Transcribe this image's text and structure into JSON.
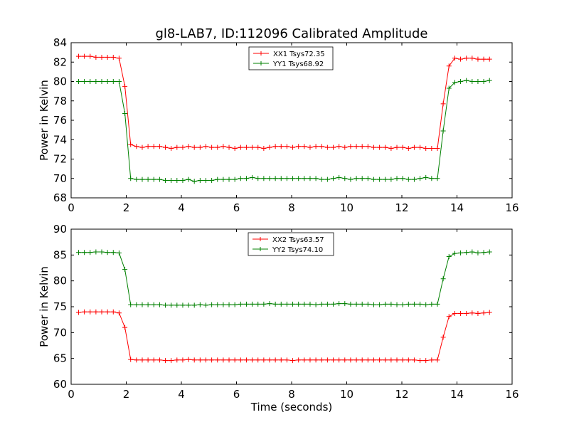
{
  "figure": {
    "title": "gl8-LAB7, ID:112096 Calibrated Amplitude"
  },
  "chart_data": [
    {
      "type": "line",
      "title": "gl8-LAB7, ID:112096 Calibrated Amplitude",
      "xlabel": "",
      "ylabel": "Power in Kelvin",
      "xlim": [
        0,
        16
      ],
      "ylim": [
        68,
        84
      ],
      "xticks": [
        0,
        2,
        4,
        6,
        8,
        10,
        12,
        14,
        16
      ],
      "yticks": [
        68,
        70,
        72,
        74,
        76,
        78,
        80,
        82,
        84
      ],
      "grid": false,
      "legend_position": "top-center",
      "x": [
        0.27,
        0.48,
        0.69,
        0.9,
        1.11,
        1.32,
        1.53,
        1.74,
        1.95,
        2.16,
        2.37,
        2.58,
        2.79,
        3.0,
        3.21,
        3.42,
        3.63,
        3.84,
        4.05,
        4.26,
        4.47,
        4.68,
        4.89,
        5.1,
        5.31,
        5.52,
        5.73,
        5.94,
        6.15,
        6.36,
        6.57,
        6.78,
        6.99,
        7.2,
        7.41,
        7.62,
        7.83,
        8.04,
        8.25,
        8.46,
        8.67,
        8.88,
        9.09,
        9.3,
        9.51,
        9.72,
        9.93,
        10.14,
        10.35,
        10.56,
        10.77,
        10.98,
        11.19,
        11.4,
        11.61,
        11.82,
        12.03,
        12.24,
        12.45,
        12.66,
        12.87,
        13.08,
        13.29,
        13.5,
        13.71,
        13.92,
        14.13,
        14.34,
        14.55,
        14.76,
        14.97,
        15.18
      ],
      "series": [
        {
          "name": "XX1 Tsys72.35",
          "color": "#ff0000",
          "values": [
            82.6,
            82.6,
            82.6,
            82.5,
            82.5,
            82.5,
            82.5,
            82.4,
            79.5,
            73.5,
            73.3,
            73.2,
            73.3,
            73.3,
            73.3,
            73.2,
            73.1,
            73.2,
            73.2,
            73.3,
            73.2,
            73.2,
            73.3,
            73.2,
            73.2,
            73.3,
            73.2,
            73.1,
            73.2,
            73.2,
            73.2,
            73.2,
            73.1,
            73.2,
            73.3,
            73.3,
            73.3,
            73.2,
            73.3,
            73.3,
            73.2,
            73.3,
            73.3,
            73.2,
            73.2,
            73.3,
            73.2,
            73.3,
            73.3,
            73.3,
            73.3,
            73.2,
            73.2,
            73.2,
            73.1,
            73.2,
            73.2,
            73.1,
            73.2,
            73.2,
            73.1,
            73.1,
            73.1,
            77.7,
            81.6,
            82.4,
            82.3,
            82.4,
            82.4,
            82.3,
            82.3,
            82.3
          ]
        },
        {
          "name": "YY1 Tsys68.92",
          "color": "#008000",
          "values": [
            80.0,
            80.0,
            80.0,
            80.0,
            80.0,
            80.0,
            80.0,
            80.0,
            76.7,
            70.0,
            69.9,
            69.9,
            69.9,
            69.9,
            69.9,
            69.8,
            69.8,
            69.8,
            69.8,
            69.9,
            69.7,
            69.8,
            69.8,
            69.8,
            69.9,
            69.9,
            69.9,
            69.9,
            70.0,
            70.0,
            70.1,
            70.0,
            70.0,
            70.0,
            70.0,
            70.0,
            70.0,
            70.0,
            70.0,
            70.0,
            70.0,
            70.0,
            69.9,
            69.9,
            70.0,
            70.1,
            70.0,
            69.9,
            70.0,
            70.0,
            70.0,
            69.9,
            69.9,
            69.9,
            69.9,
            70.0,
            70.0,
            69.9,
            69.9,
            70.0,
            70.1,
            70.0,
            70.0,
            74.9,
            79.3,
            79.9,
            80.0,
            80.1,
            80.0,
            80.0,
            80.0,
            80.1
          ]
        }
      ]
    },
    {
      "type": "line",
      "title": "",
      "xlabel": "Time (seconds)",
      "ylabel": "Power in Kelvin",
      "xlim": [
        0,
        16
      ],
      "ylim": [
        60,
        90
      ],
      "xticks": [
        0,
        2,
        4,
        6,
        8,
        10,
        12,
        14,
        16
      ],
      "yticks": [
        60,
        65,
        70,
        75,
        80,
        85,
        90
      ],
      "grid": false,
      "legend_position": "top-center",
      "x": [
        0.27,
        0.48,
        0.69,
        0.9,
        1.11,
        1.32,
        1.53,
        1.74,
        1.95,
        2.16,
        2.37,
        2.58,
        2.79,
        3.0,
        3.21,
        3.42,
        3.63,
        3.84,
        4.05,
        4.26,
        4.47,
        4.68,
        4.89,
        5.1,
        5.31,
        5.52,
        5.73,
        5.94,
        6.15,
        6.36,
        6.57,
        6.78,
        6.99,
        7.2,
        7.41,
        7.62,
        7.83,
        8.04,
        8.25,
        8.46,
        8.67,
        8.88,
        9.09,
        9.3,
        9.51,
        9.72,
        9.93,
        10.14,
        10.35,
        10.56,
        10.77,
        10.98,
        11.19,
        11.4,
        11.61,
        11.82,
        12.03,
        12.24,
        12.45,
        12.66,
        12.87,
        13.08,
        13.29,
        13.5,
        13.71,
        13.92,
        14.13,
        14.34,
        14.55,
        14.76,
        14.97,
        15.18
      ],
      "series": [
        {
          "name": "XX2 Tsys63.57",
          "color": "#ff0000",
          "values": [
            73.9,
            74.0,
            74.0,
            74.0,
            74.0,
            74.0,
            74.0,
            73.8,
            71.0,
            64.8,
            64.7,
            64.7,
            64.7,
            64.7,
            64.7,
            64.6,
            64.6,
            64.7,
            64.7,
            64.8,
            64.7,
            64.7,
            64.7,
            64.7,
            64.7,
            64.7,
            64.7,
            64.7,
            64.7,
            64.7,
            64.7,
            64.7,
            64.7,
            64.7,
            64.7,
            64.7,
            64.7,
            64.6,
            64.7,
            64.7,
            64.7,
            64.7,
            64.7,
            64.7,
            64.7,
            64.7,
            64.7,
            64.7,
            64.7,
            64.7,
            64.7,
            64.7,
            64.7,
            64.7,
            64.7,
            64.7,
            64.7,
            64.7,
            64.7,
            64.6,
            64.6,
            64.7,
            64.7,
            69.1,
            73.1,
            73.7,
            73.7,
            73.7,
            73.8,
            73.7,
            73.8,
            73.9
          ]
        },
        {
          "name": "YY2 Tsys74.10",
          "color": "#008000",
          "values": [
            85.5,
            85.5,
            85.5,
            85.6,
            85.6,
            85.5,
            85.5,
            85.4,
            82.2,
            75.4,
            75.4,
            75.4,
            75.4,
            75.4,
            75.4,
            75.3,
            75.3,
            75.3,
            75.3,
            75.3,
            75.3,
            75.4,
            75.3,
            75.4,
            75.4,
            75.4,
            75.4,
            75.4,
            75.5,
            75.5,
            75.5,
            75.5,
            75.5,
            75.6,
            75.5,
            75.5,
            75.5,
            75.5,
            75.5,
            75.5,
            75.5,
            75.4,
            75.5,
            75.5,
            75.5,
            75.6,
            75.6,
            75.5,
            75.5,
            75.5,
            75.5,
            75.4,
            75.4,
            75.5,
            75.5,
            75.4,
            75.4,
            75.5,
            75.5,
            75.5,
            75.4,
            75.5,
            75.5,
            80.4,
            84.7,
            85.3,
            85.4,
            85.5,
            85.6,
            85.4,
            85.5,
            85.6
          ]
        }
      ]
    }
  ]
}
